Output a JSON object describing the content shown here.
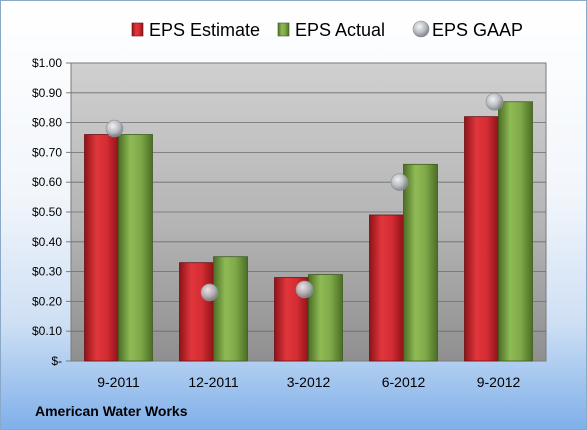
{
  "company_name": "American Water Works",
  "chart_data": {
    "type": "bar",
    "title": "",
    "xlabel": "",
    "ylabel": "",
    "categories": [
      "9-2011",
      "12-2011",
      "3-2012",
      "6-2012",
      "9-2012"
    ],
    "series": [
      {
        "name": "EPS Estimate",
        "type": "bar",
        "color": "#c0272d",
        "values": [
          0.76,
          0.33,
          0.28,
          0.49,
          0.82
        ]
      },
      {
        "name": "EPS Actual",
        "type": "bar",
        "color": "#6f9a3c",
        "values": [
          0.76,
          0.35,
          0.29,
          0.66,
          0.87
        ]
      },
      {
        "name": "EPS GAAP",
        "type": "scatter",
        "color": "#b9bcc2",
        "values": [
          0.78,
          0.23,
          0.24,
          0.6,
          0.87
        ]
      }
    ],
    "ylim": [
      0,
      1.0
    ],
    "yticks": [
      0,
      0.1,
      0.2,
      0.3,
      0.4,
      0.5,
      0.6,
      0.7,
      0.8,
      0.9,
      1.0
    ],
    "ytick_labels": [
      "$-",
      "$0.10",
      "$0.20",
      "$0.30",
      "$0.40",
      "$0.50",
      "$0.60",
      "$0.70",
      "$0.80",
      "$0.90",
      "$1.00"
    ],
    "grid": true,
    "legend_position": "top"
  }
}
